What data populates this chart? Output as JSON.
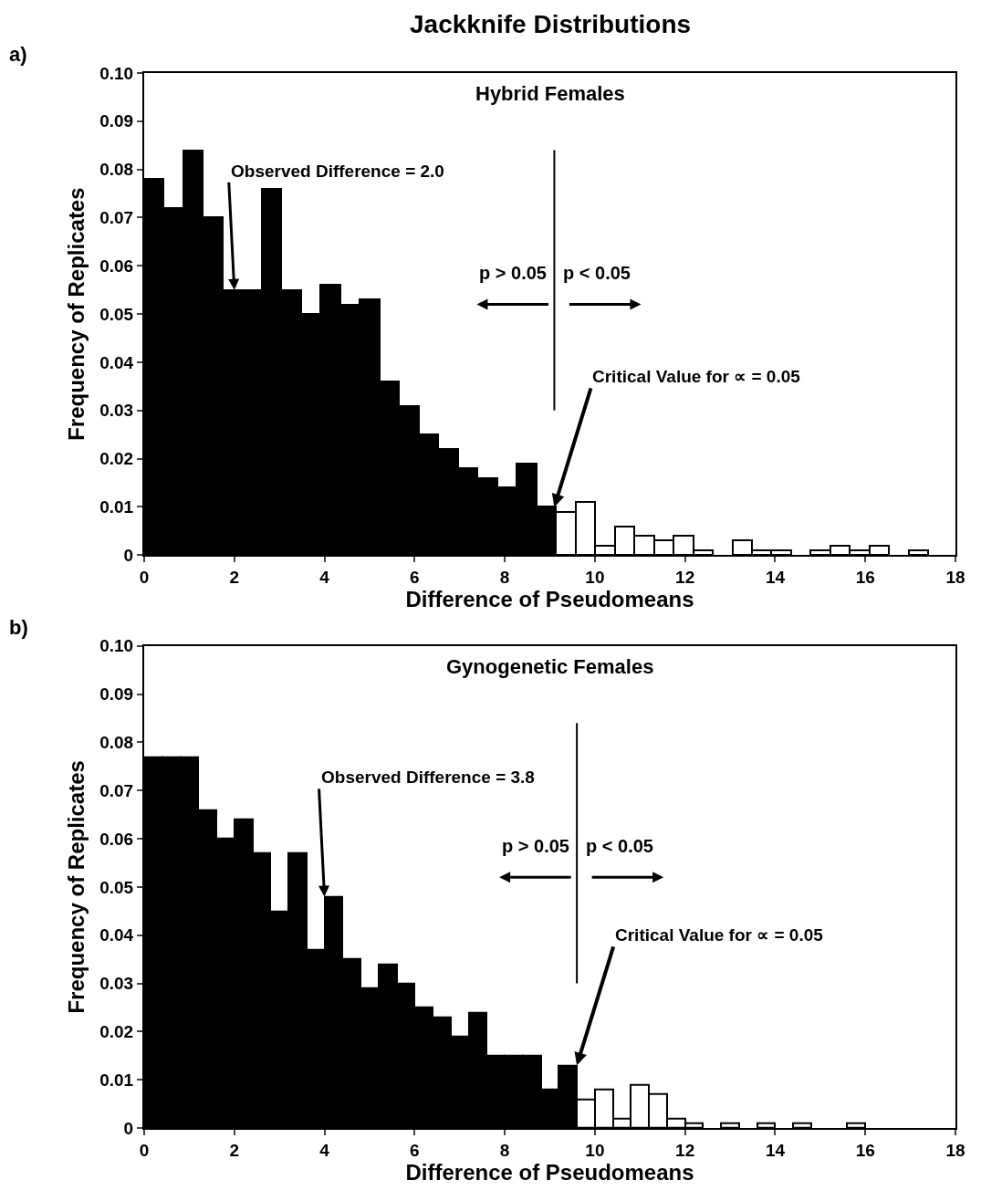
{
  "chart_data": [
    {
      "type": "histogram",
      "title": "Jackknife Distributions",
      "subtitle": "Hybrid Females",
      "xlabel": "Difference of Pseudomeans",
      "ylabel": "Frequency of Replicates",
      "bins": [
        0,
        0.435,
        0.87,
        1.305,
        1.74,
        2.175,
        2.61,
        3.045,
        3.48,
        3.915,
        4.35,
        4.785,
        5.22,
        5.655,
        6.09,
        6.525,
        6.96,
        7.395,
        7.83,
        8.265,
        8.7,
        9.135,
        9.57,
        10.005,
        10.44,
        10.875,
        11.31,
        11.745,
        12.18,
        12.615,
        13.05,
        13.485,
        13.92,
        14.355,
        14.79,
        15.225,
        15.66,
        16.095,
        16.53,
        16.965,
        17.4
      ],
      "values": [
        0.078,
        0.072,
        0.084,
        0.07,
        0.055,
        0.055,
        0.076,
        0.055,
        0.05,
        0.056,
        0.052,
        0.053,
        0.036,
        0.031,
        0.025,
        0.022,
        0.018,
        0.016,
        0.014,
        0.019,
        0.01,
        0.009,
        0.011,
        0.002,
        0.006,
        0.004,
        0.003,
        0.004,
        0.001,
        0,
        0.003,
        0.001,
        0.001,
        0,
        0.001,
        0.002,
        0.001,
        0.002,
        0,
        0.001
      ],
      "colors": [
        "#000000",
        "#000000",
        "#000000",
        "#000000",
        "#000000",
        "#000000",
        "#000000",
        "#000000",
        "#000000",
        "#000000",
        "#000000",
        "#000000",
        "#000000",
        "#000000",
        "#000000",
        "#000000",
        "#000000",
        "#000000",
        "#000000",
        "#000000",
        "#000000",
        "#ffffff",
        "#ffffff",
        "#ffffff",
        "#ffffff",
        "#ffffff",
        "#ffffff",
        "#ffffff",
        "#ffffff",
        "#ffffff",
        "#ffffff",
        "#ffffff",
        "#ffffff",
        "#ffffff",
        "#ffffff",
        "#ffffff",
        "#ffffff",
        "#ffffff",
        "#ffffff",
        "#ffffff"
      ],
      "xlim": [
        0,
        18
      ],
      "xticks": [
        0,
        2,
        4,
        6,
        8,
        10,
        12,
        14,
        16,
        18
      ],
      "ylim": [
        0,
        0.1
      ],
      "yticks": [
        0,
        0.01,
        0.02,
        0.03,
        0.04,
        0.05,
        0.06,
        0.07,
        0.08,
        0.09,
        {
          "value": 0.1,
          "label": "0.10"
        }
      ],
      "ref_lines": [
        {
          "axis": "x",
          "value": 9.1,
          "color": "#000000"
        }
      ],
      "annotations": [
        "a)",
        {
          "text": "Observed Difference = 2.0",
          "x": 2.0,
          "y": 0.055
        },
        {
          "text": "Critical Value for ∝ = 0.05",
          "x": 9.1,
          "y": 0.01
        },
        "p > 0.05",
        "p < 0.05"
      ]
    },
    {
      "type": "histogram",
      "subtitle": "Gynogenetic Females",
      "xlabel": "Difference of Pseudomeans",
      "ylabel": "Frequency of Replicates",
      "bins": [
        0,
        0.4,
        0.8,
        1.2,
        1.6,
        2.0,
        2.4,
        2.8,
        3.2,
        3.6,
        4.0,
        4.4,
        4.8,
        5.2,
        5.6,
        6.0,
        6.4,
        6.8,
        7.2,
        7.6,
        8.0,
        8.4,
        8.8,
        9.2,
        9.6,
        10.0,
        10.4,
        10.8,
        11.2,
        11.6,
        12.0,
        12.4,
        12.8,
        13.2,
        13.6,
        14.0,
        14.4,
        14.8,
        15.2,
        15.6,
        16.0
      ],
      "values": [
        0.077,
        0.077,
        0.077,
        0.066,
        0.06,
        0.064,
        0.057,
        0.045,
        0.057,
        0.037,
        0.048,
        0.035,
        0.029,
        0.034,
        0.03,
        0.025,
        0.023,
        0.019,
        0.024,
        0.015,
        0.015,
        0.015,
        0.008,
        0.013,
        0.006,
        0.008,
        0.002,
        0.009,
        0.007,
        0.002,
        0.001,
        0,
        0.001,
        0,
        0.001,
        0,
        0.001,
        0,
        0,
        0.001
      ],
      "colors": [
        "#000000",
        "#000000",
        "#000000",
        "#000000",
        "#000000",
        "#000000",
        "#000000",
        "#000000",
        "#000000",
        "#000000",
        "#000000",
        "#000000",
        "#000000",
        "#000000",
        "#000000",
        "#000000",
        "#000000",
        "#000000",
        "#000000",
        "#000000",
        "#000000",
        "#000000",
        "#000000",
        "#000000",
        "#ffffff",
        "#ffffff",
        "#ffffff",
        "#ffffff",
        "#ffffff",
        "#ffffff",
        "#ffffff",
        "#ffffff",
        "#ffffff",
        "#ffffff",
        "#ffffff",
        "#ffffff",
        "#ffffff",
        "#ffffff",
        "#ffffff",
        "#ffffff"
      ],
      "xlim": [
        0,
        18
      ],
      "xticks": [
        0,
        2,
        4,
        6,
        8,
        10,
        12,
        14,
        16,
        18
      ],
      "ylim": [
        0,
        0.1
      ],
      "yticks": [
        0,
        0.01,
        0.02,
        0.03,
        0.04,
        0.05,
        0.06,
        0.07,
        0.08,
        0.09,
        {
          "value": 0.1,
          "label": "0.10"
        }
      ],
      "ref_lines": [
        {
          "axis": "x",
          "value": 9.6,
          "color": "#000000"
        }
      ],
      "annotations": [
        "b)",
        {
          "text": "Observed Difference = 3.8",
          "x": 4.0,
          "y": 0.048
        },
        {
          "text": "Critical Value for ∝ = 0.05",
          "x": 9.6,
          "y": 0.013
        },
        "p > 0.05",
        "p < 0.05"
      ]
    }
  ]
}
